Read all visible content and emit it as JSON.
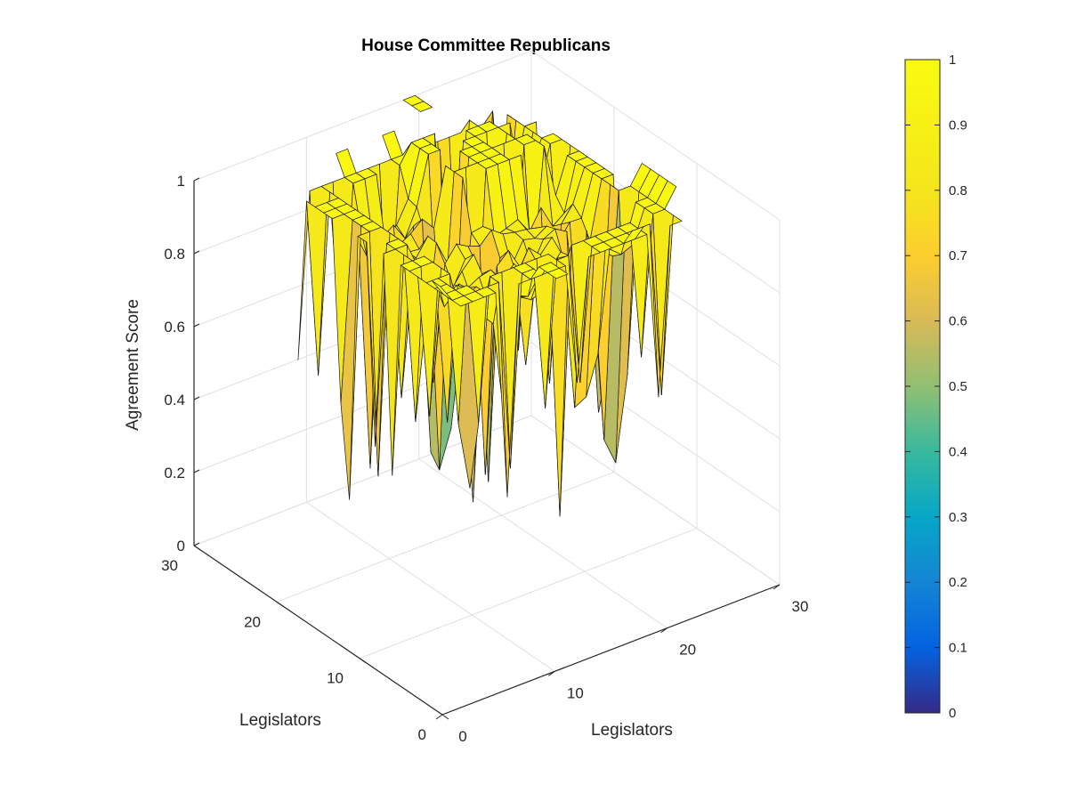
{
  "chart_data": {
    "type": "surface3d",
    "title": "House Committee Republicans",
    "xlabel": "Legislators",
    "ylabel": "Legislators",
    "zlabel": "Agreement Score",
    "xlim": [
      0,
      30
    ],
    "ylim": [
      0,
      30
    ],
    "zlim": [
      0,
      1
    ],
    "x_ticks": [
      "0",
      "10",
      "20",
      "30"
    ],
    "y_ticks": [
      "0",
      "10",
      "20",
      "30"
    ],
    "z_ticks": [
      "0",
      "0.2",
      "0.4",
      "0.6",
      "0.8",
      "1"
    ],
    "grid": true,
    "colormap": "parula",
    "colorbar": {
      "range": [
        0,
        1
      ],
      "ticks": [
        "0",
        "0.1",
        "0.2",
        "0.3",
        "0.4",
        "0.5",
        "0.6",
        "0.7",
        "0.8",
        "0.9",
        "1"
      ]
    },
    "surface": {
      "grid_range": [
        1,
        29
      ],
      "description_of_values": "Agreement scores near 1 (yellow) at the top plateau and around the edges; orange 0.7-0.85 cells in the middle region; several downward spikes to about 0.2-0.4 around legislators 8-12 and 18-22; blank (NaN) cells along the outer border except scattered yellow 1.0 tiles.",
      "notable_min": 0.2,
      "notable_max": 1.0
    }
  }
}
